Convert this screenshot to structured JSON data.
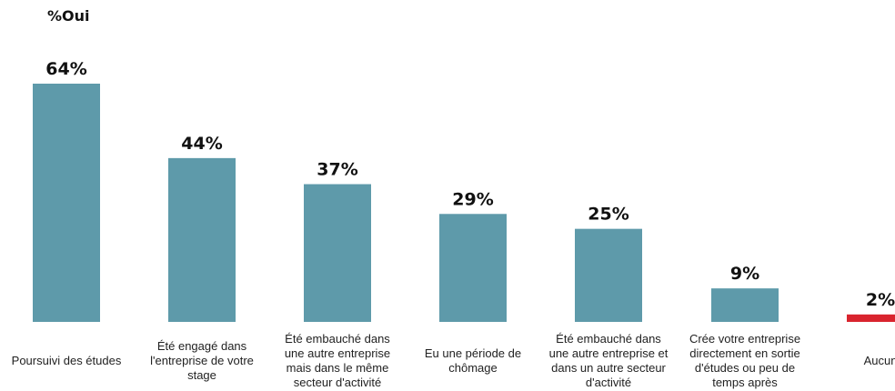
{
  "chart_data": {
    "type": "bar",
    "title": "%Oui",
    "categories": [
      "Poursuivi des études",
      "Été engagé dans l'entreprise de votre stage",
      "Été embauché dans une autre entreprise mais dans le même secteur d'activité",
      "Eu une période de chômage",
      "Été embauché dans une autre entreprise et dans un autre secteur d'activité",
      "Crée votre entreprise directement en sortie d'études ou peu de temps après",
      "Aucun"
    ],
    "category_lines": [
      [
        "Poursuivi des études"
      ],
      [
        "Été engagé dans",
        "l'entreprise de votre",
        "stage"
      ],
      [
        "Été embauché dans",
        "une autre entreprise",
        "mais dans le même",
        "secteur d'activité"
      ],
      [
        "Eu une période de",
        "chômage"
      ],
      [
        "Été embauché dans",
        "une autre entreprise et",
        "dans un autre secteur",
        "d'activité"
      ],
      [
        "Crée votre entreprise",
        "directement en sortie",
        "d'études ou peu de",
        "temps après"
      ],
      [
        "Aucun"
      ]
    ],
    "values": [
      64,
      44,
      37,
      29,
      25,
      9,
      2
    ],
    "value_labels": [
      "64%",
      "44%",
      "37%",
      "29%",
      "25%",
      "9%",
      "2%"
    ],
    "bar_colors": [
      "#5e9aaa",
      "#5e9aaa",
      "#5e9aaa",
      "#5e9aaa",
      "#5e9aaa",
      "#5e9aaa",
      "#d9242e"
    ],
    "ylim": [
      0,
      64
    ],
    "grid": false,
    "legend": "none"
  }
}
